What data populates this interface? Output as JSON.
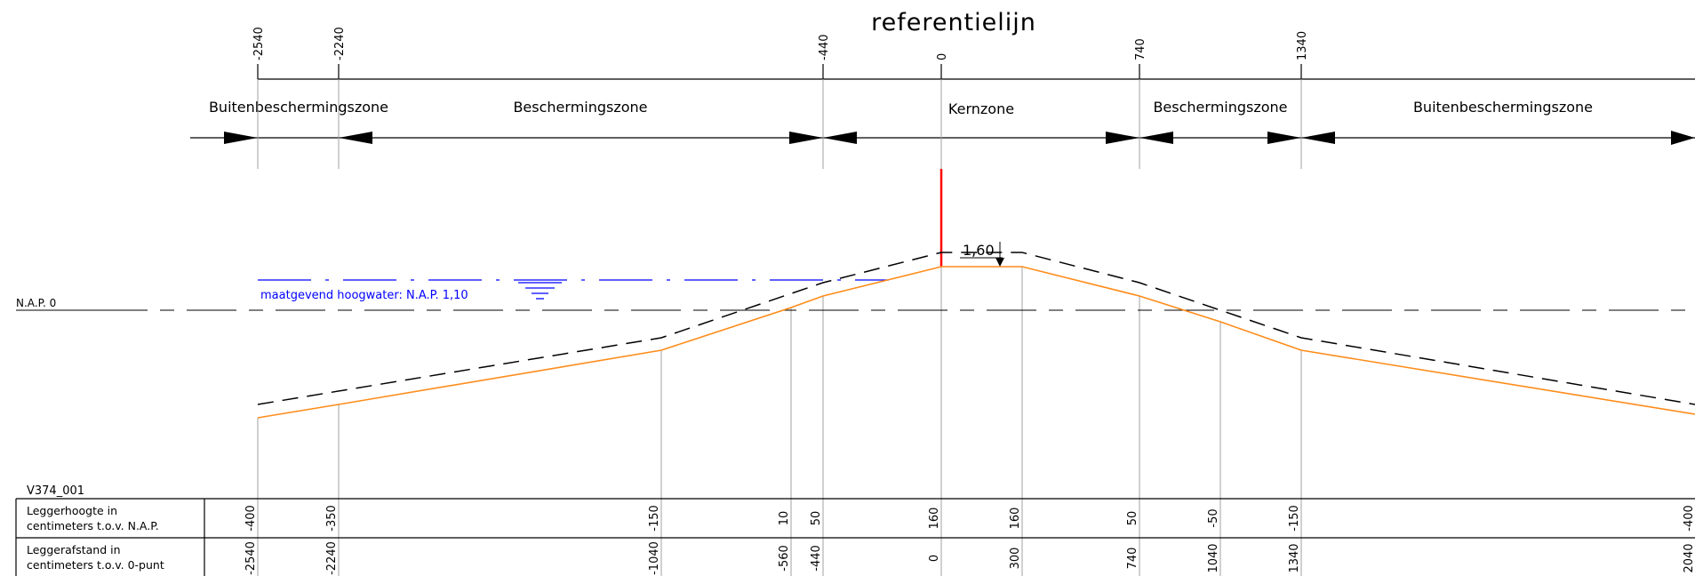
{
  "title": "referentielijn",
  "top_ticks": [
    "-2540",
    "-2240",
    "-440",
    "0",
    "740",
    "1340"
  ],
  "zones": [
    "Buitenbeschermingszone",
    "Beschermingszone",
    "Kernzone",
    "Beschermingszone",
    "Buitenbeschermingszone"
  ],
  "nap_label": "N.A.P. 0",
  "water_label": "maatgevend hoogwater: N.A.P. 1,10",
  "crest_annotation": "1,60",
  "profile_id": "V374_001",
  "table": {
    "row1_label_a": "Leggerhoogte in",
    "row1_label_b": "centimeters t.o.v. N.A.P.",
    "row2_label_a": "Leggerafstand in",
    "row2_label_b": "centimeters t.o.v. 0-punt",
    "heights": [
      "-400",
      "-350",
      "-150",
      "10",
      "50",
      "160",
      "160",
      "50",
      "-50",
      "-150",
      "-400"
    ],
    "distances": [
      "-2540",
      "-2240",
      "-1040",
      "-560",
      "-440",
      "0",
      "300",
      "740",
      "1040",
      "1340",
      "2040"
    ]
  },
  "colors": {
    "profile": "#ff8c1a",
    "reference": "#ff0000",
    "water": "#0000ff",
    "lines": "#000000",
    "verticals": "#a0a0a0"
  }
}
